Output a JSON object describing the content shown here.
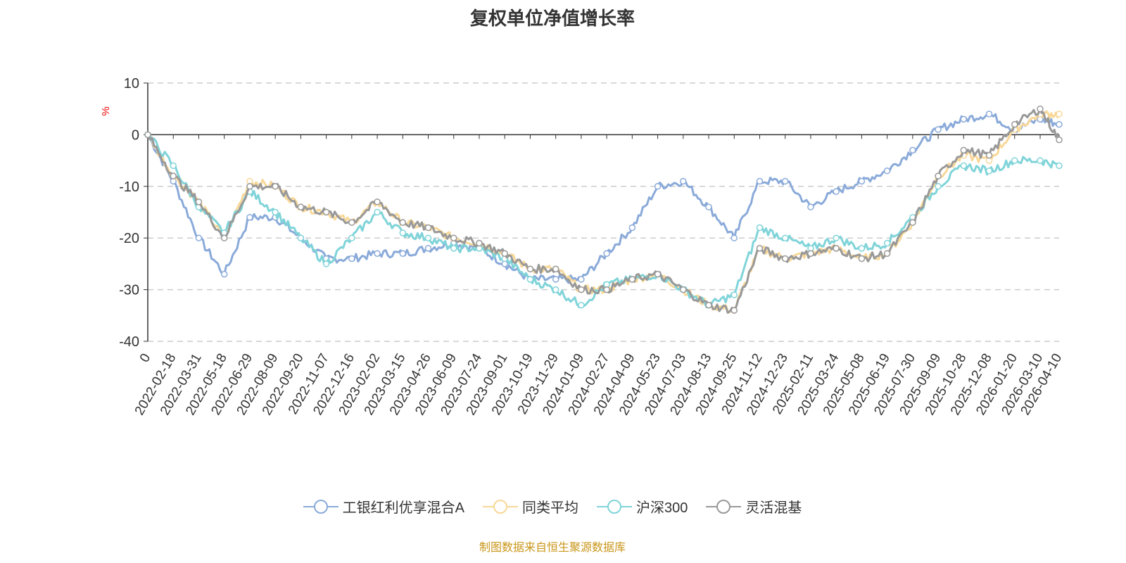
{
  "chart_data": {
    "type": "line",
    "title": "复权单位净值增长率",
    "ylabel": "%",
    "xlabel": "",
    "ylim": [
      -40,
      10
    ],
    "yticks": [
      10,
      0,
      -10,
      -20,
      -30,
      -40
    ],
    "grid": true,
    "legend_position": "bottom",
    "categories": [
      "0",
      "2022-02-18",
      "2022-03-31",
      "2022-05-18",
      "2022-06-29",
      "2022-08-09",
      "2022-09-20",
      "2022-11-07",
      "2022-12-16",
      "2023-02-02",
      "2023-03-15",
      "2023-04-26",
      "2023-06-09",
      "2023-07-24",
      "2023-09-01",
      "2023-10-19",
      "2023-11-29",
      "2024-01-09",
      "2024-02-27",
      "2024-04-09",
      "2024-05-23",
      "2024-07-03",
      "2024-08-13",
      "2024-09-25",
      "2024-11-12",
      "2024-12-23",
      "2025-02-11",
      "2025-03-24",
      "2025-05-08",
      "2025-06-19",
      "2025-07-30",
      "2025-09-09",
      "2025-10-28",
      "2025-12-08",
      "2026-01-20",
      "2026-03-10",
      "2026-04-10"
    ],
    "series": [
      {
        "name": "工银红利优享混合A",
        "color": "#8aaad9",
        "values": [
          0,
          -9,
          -20,
          -27,
          -16,
          -16,
          -20,
          -24,
          -24,
          -23,
          -23,
          -22,
          -21,
          -22,
          -25,
          -28,
          -28,
          -28,
          -23,
          -18,
          -10,
          -9,
          -14,
          -20,
          -9,
          -9,
          -14,
          -11,
          -9,
          -7,
          -3,
          1,
          3,
          4,
          1,
          3,
          2
        ]
      },
      {
        "name": "同类平均",
        "color": "#f8d898",
        "values": [
          0,
          -8,
          -13,
          -20,
          -9,
          -10,
          -14,
          -15,
          -17,
          -13,
          -17,
          -18,
          -20,
          -21,
          -23,
          -26,
          -26,
          -30,
          -30,
          -28,
          -27,
          -30,
          -33,
          -34,
          -22,
          -24,
          -23,
          -22,
          -24,
          -23,
          -17,
          -8,
          -4,
          -5,
          1,
          4,
          4
        ]
      },
      {
        "name": "沪深300",
        "color": "#80d4d9",
        "values": [
          0,
          -6,
          -14,
          -19,
          -11,
          -15,
          -20,
          -25,
          -20,
          -15,
          -19,
          -20,
          -22,
          -22,
          -24,
          -28,
          -30,
          -33,
          -29,
          -28,
          -27,
          -30,
          -33,
          -31,
          -18,
          -20,
          -22,
          -20,
          -22,
          -21,
          -16,
          -10,
          -6,
          -7,
          -5,
          -5,
          -6
        ]
      },
      {
        "name": "灵活混基",
        "color": "#999999",
        "values": [
          0,
          -8,
          -13,
          -20,
          -10,
          -10,
          -14,
          -15,
          -17,
          -13,
          -17,
          -18,
          -20,
          -21,
          -23,
          -26,
          -26,
          -30,
          -30,
          -28,
          -27,
          -30,
          -33,
          -34,
          -22,
          -24,
          -23,
          -22,
          -24,
          -23,
          -17,
          -8,
          -3,
          -4,
          2,
          5,
          -1
        ]
      }
    ]
  },
  "footer": "制图数据来自恒生聚源数据库"
}
